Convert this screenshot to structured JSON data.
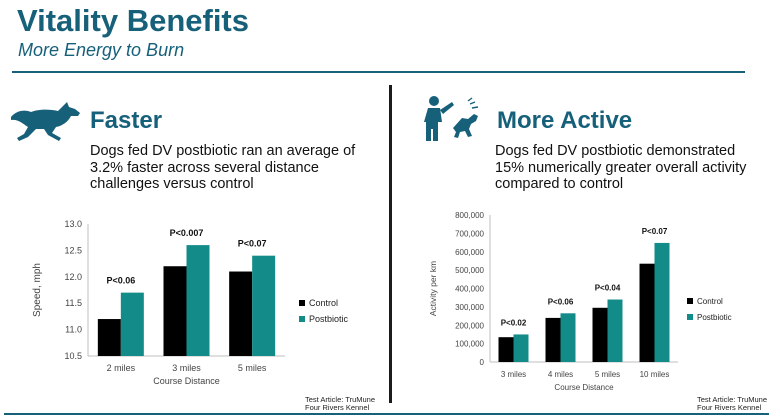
{
  "title": "Vitality Benefits",
  "subtitle": "More Energy to Burn",
  "left": {
    "heading": "Faster",
    "description": "Dogs fed DV postbiotic ran an average of 3.2% faster across several distance challenges versus control",
    "icon": "running-dog-icon",
    "test_article": "Test Article: TruMune",
    "kennel": "Four Rivers Kennel"
  },
  "right": {
    "heading": "More Active",
    "description": "Dogs fed DV postbiotic demonstrated 15% numerically greater overall activity compared to control",
    "icon": "person-playing-with-dog-icon",
    "test_article": "Test Article: TruMune",
    "kennel": "Four Rivers Kennel"
  },
  "colors": {
    "brand": "#17607a",
    "control": "#000000",
    "postbiotic": "#138b89"
  },
  "chart_data": [
    {
      "type": "bar",
      "categories": [
        "2 miles",
        "3 miles",
        "5 miles"
      ],
      "series": [
        {
          "name": "Control",
          "values": [
            11.2,
            12.2,
            12.1
          ]
        },
        {
          "name": "Postbiotic",
          "values": [
            11.7,
            12.6,
            12.4
          ]
        }
      ],
      "annotations": [
        "P<0.06",
        "P<0.007",
        "P<0.07"
      ],
      "xlabel": "Course Distance",
      "ylabel": "Speed, mph",
      "ylim": [
        10.5,
        13.0
      ],
      "yticks": [
        "10.5",
        "11.0",
        "11.5",
        "12.0",
        "12.5",
        "13.0"
      ]
    },
    {
      "type": "bar",
      "categories": [
        "3 miles",
        "4 miles",
        "5 miles",
        "10 miles"
      ],
      "series": [
        {
          "name": "Control",
          "values": [
            135000,
            240000,
            295000,
            535000
          ]
        },
        {
          "name": "Postbiotic",
          "values": [
            150000,
            265000,
            340000,
            648000
          ]
        }
      ],
      "annotations": [
        "P<0.02",
        "P<0.06",
        "P<0.04",
        "P<0.07"
      ],
      "xlabel": "Course Distance",
      "ylabel": "Activity per km",
      "ylim": [
        0,
        800000
      ],
      "yticks": [
        "0",
        "100,000",
        "200,000",
        "300,000",
        "400,000",
        "500,000",
        "600,000",
        "700,000",
        "800,000"
      ]
    }
  ]
}
